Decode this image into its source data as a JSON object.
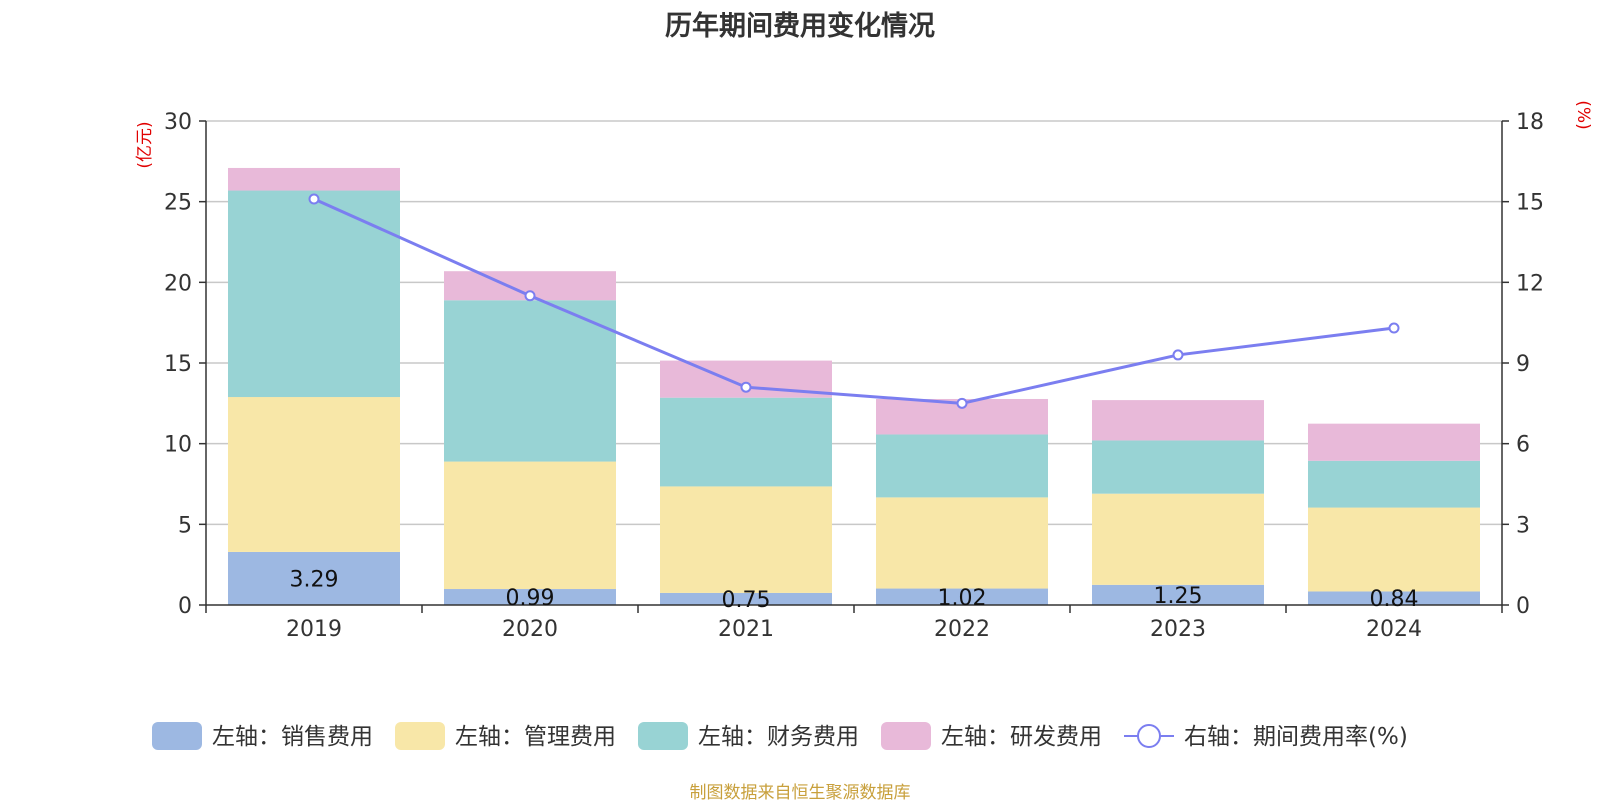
{
  "title": "历年期间费用变化情况",
  "source_note": "制图数据来自恒生聚源数据库",
  "chart_data": {
    "type": "bar",
    "stacked": true,
    "categories": [
      "2019",
      "2020",
      "2021",
      "2022",
      "2023",
      "2024"
    ],
    "y_left": {
      "unit": "(亿元)",
      "min": 0,
      "max": 30,
      "ticks": [
        0,
        5,
        10,
        15,
        20,
        25,
        30
      ]
    },
    "y_right": {
      "unit": "(%)",
      "min": 0,
      "max": 18,
      "ticks": [
        0,
        3,
        6,
        9,
        12,
        15,
        18
      ]
    },
    "grid": true,
    "legend_position": "bottom",
    "series": [
      {
        "name": "左轴：销售费用",
        "axis": "left",
        "color": "#9db8e2",
        "values": [
          3.29,
          0.99,
          0.75,
          1.02,
          1.25,
          0.84
        ],
        "show_labels": true
      },
      {
        "name": "左轴：管理费用",
        "axis": "left",
        "color": "#f8e7a8",
        "values": [
          9.6,
          7.9,
          6.6,
          5.65,
          5.65,
          5.2
        ],
        "show_labels": false
      },
      {
        "name": "左轴：财务费用",
        "axis": "left",
        "color": "#98d3d4",
        "values": [
          12.8,
          10.0,
          5.5,
          3.9,
          3.3,
          2.9
        ],
        "show_labels": false
      },
      {
        "name": "左轴：研发费用",
        "axis": "left",
        "color": "#e8b9d9",
        "values": [
          1.4,
          1.8,
          2.3,
          2.2,
          2.5,
          2.3
        ],
        "show_labels": false
      },
      {
        "name": "右轴：期间费用率(%)",
        "axis": "right",
        "type": "line",
        "color": "#7b7ef0",
        "values": [
          15.1,
          11.5,
          8.1,
          7.5,
          9.3,
          10.3
        ]
      }
    ]
  }
}
